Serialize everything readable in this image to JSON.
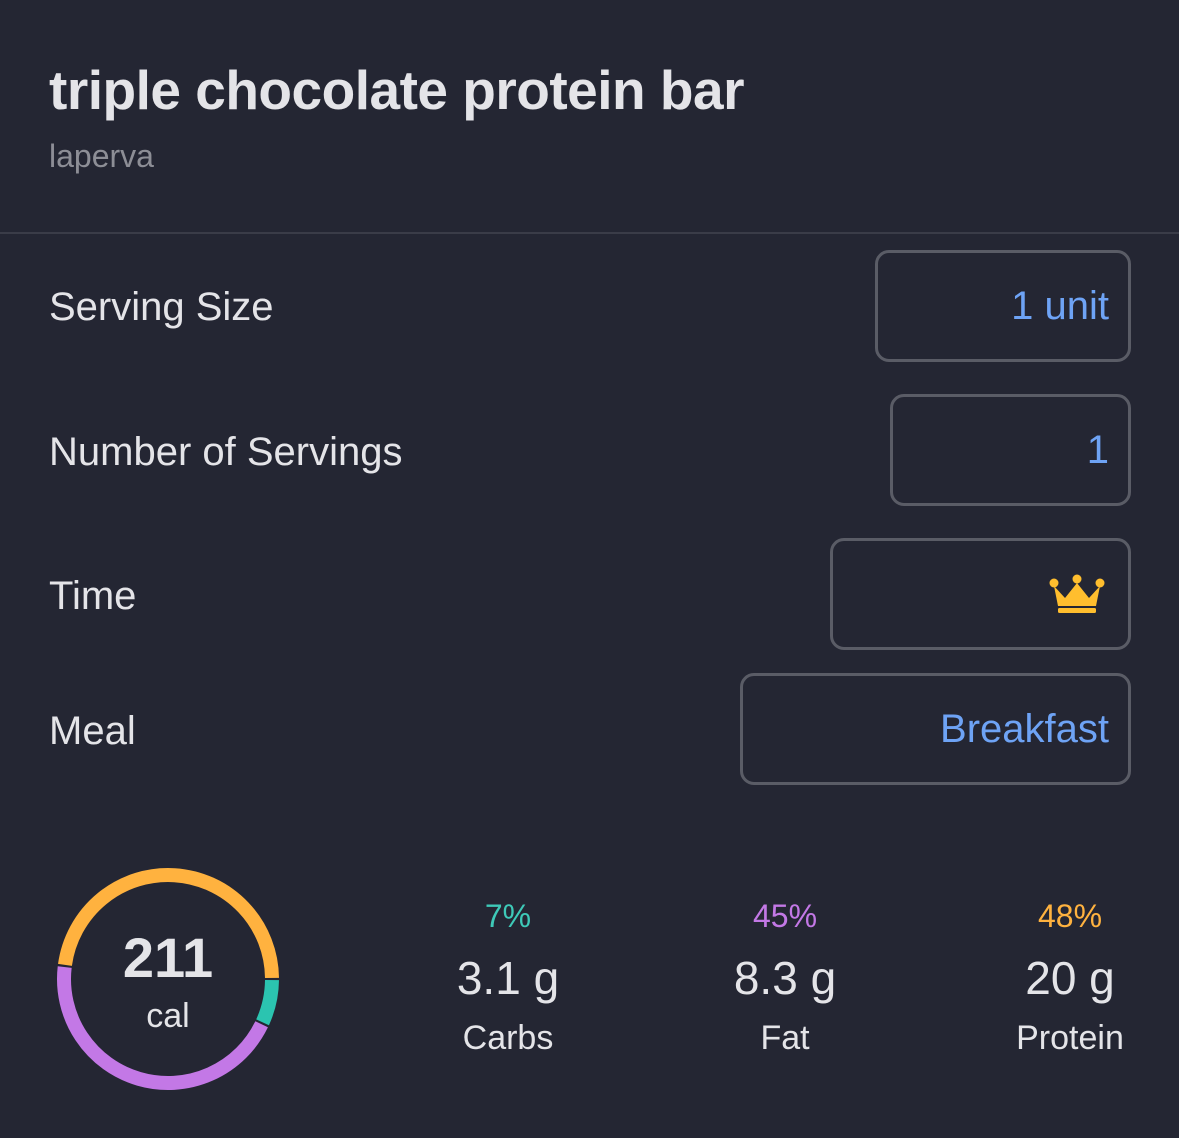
{
  "header": {
    "title": "triple chocolate protein bar",
    "brand": "laperva"
  },
  "rows": {
    "serving_size": {
      "label": "Serving Size",
      "value": "1 unit"
    },
    "servings": {
      "label": "Number of Servings",
      "value": "1"
    },
    "time": {
      "label": "Time",
      "icon": "crown-icon"
    },
    "meal": {
      "label": "Meal",
      "value": "Breakfast"
    }
  },
  "calories": {
    "value": "211",
    "unit": "cal"
  },
  "macros": [
    {
      "name": "Carbs",
      "grams": "3.1 g",
      "percent": "7%",
      "fraction": 0.07,
      "color": "#2bc4b0"
    },
    {
      "name": "Fat",
      "grams": "8.3 g",
      "percent": "45%",
      "fraction": 0.45,
      "color": "#c378e6"
    },
    {
      "name": "Protein",
      "grams": "20 g",
      "percent": "48%",
      "fraction": 0.48,
      "color": "#ffb23f"
    }
  ],
  "colors": {
    "background": "#242633",
    "accent": "#6ea3f5",
    "field_border": "#5a5c66",
    "premium_crown": "#ffbe2e"
  }
}
